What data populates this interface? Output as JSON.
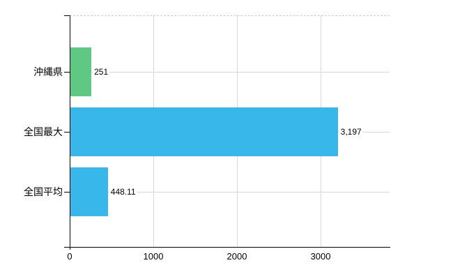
{
  "chart_data": {
    "type": "bar",
    "orientation": "horizontal",
    "title": "",
    "categories": [
      "沖縄県",
      "全国最大",
      "全国平均"
    ],
    "values": [
      251,
      3197,
      448.11
    ],
    "value_labels": [
      "251",
      "3,197",
      "448.11"
    ],
    "bar_colors": [
      "#5fc882",
      "#38b7ea",
      "#38b7ea"
    ],
    "x_ticks": [
      0,
      1000,
      2000,
      3000
    ],
    "x_tick_labels": [
      "0",
      "1000",
      "2000",
      "3000"
    ],
    "xlim": [
      0,
      3833
    ],
    "grid": true,
    "legend": false
  },
  "colors": {
    "background": "#ffffff",
    "axis": "#000000",
    "gridline": "#d8d8d8",
    "bar_green": "#5fc882",
    "bar_blue": "#38b7ea"
  }
}
